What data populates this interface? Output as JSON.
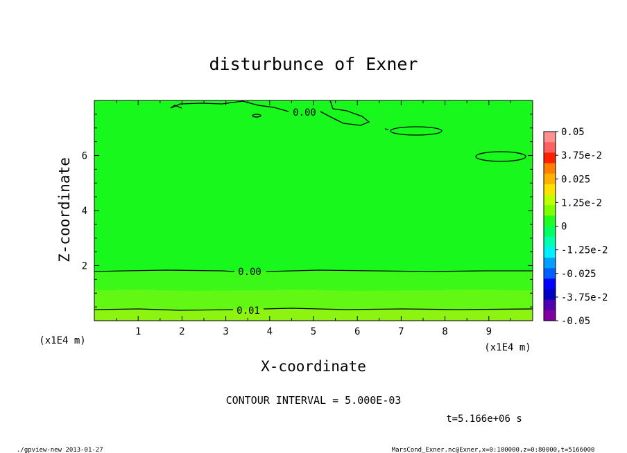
{
  "chart_data": {
    "type": "contour",
    "title": "disturbunce of Exner",
    "xlabel": "X-coordinate",
    "ylabel": "Z-coordinate",
    "x_unit": "(x1E4 m)",
    "y_unit": "(x1E4 m)",
    "xlim": [
      0,
      10
    ],
    "ylim": [
      0,
      8
    ],
    "x_ticks": [
      "1",
      "2",
      "3",
      "4",
      "5",
      "6",
      "7",
      "8",
      "9"
    ],
    "y_ticks": [
      "2",
      "4",
      "6"
    ],
    "colorbar": {
      "levels": [
        "0.05",
        "3.75e-2",
        "0.025",
        "1.25e-2",
        "0",
        "-1.25e-2",
        "-0.025",
        "-3.75e-2",
        "-0.05"
      ],
      "colors": [
        "#ff9090",
        "#ff6060",
        "#ff2000",
        "#ff8000",
        "#ffb000",
        "#ffe000",
        "#c0ff00",
        "#80ff00",
        "#20ff20",
        "#00ff60",
        "#00ffb0",
        "#00f0ff",
        "#00a0ff",
        "#0060ff",
        "#0000ff",
        "#0000c0",
        "#5000b0",
        "#8000a0"
      ]
    },
    "contour_labels": [
      "0.00",
      "0.00",
      "0.01"
    ],
    "contour_interval": "CONTOUR INTERVAL = 5.000E-03",
    "time": "t=5.166e+06 s"
  },
  "footer": {
    "left": "./gpview-new  2013-01-27",
    "right": "MarsCond_Exner.nc@Exner,x=0:100000,z=0:80000,t=5166000"
  }
}
